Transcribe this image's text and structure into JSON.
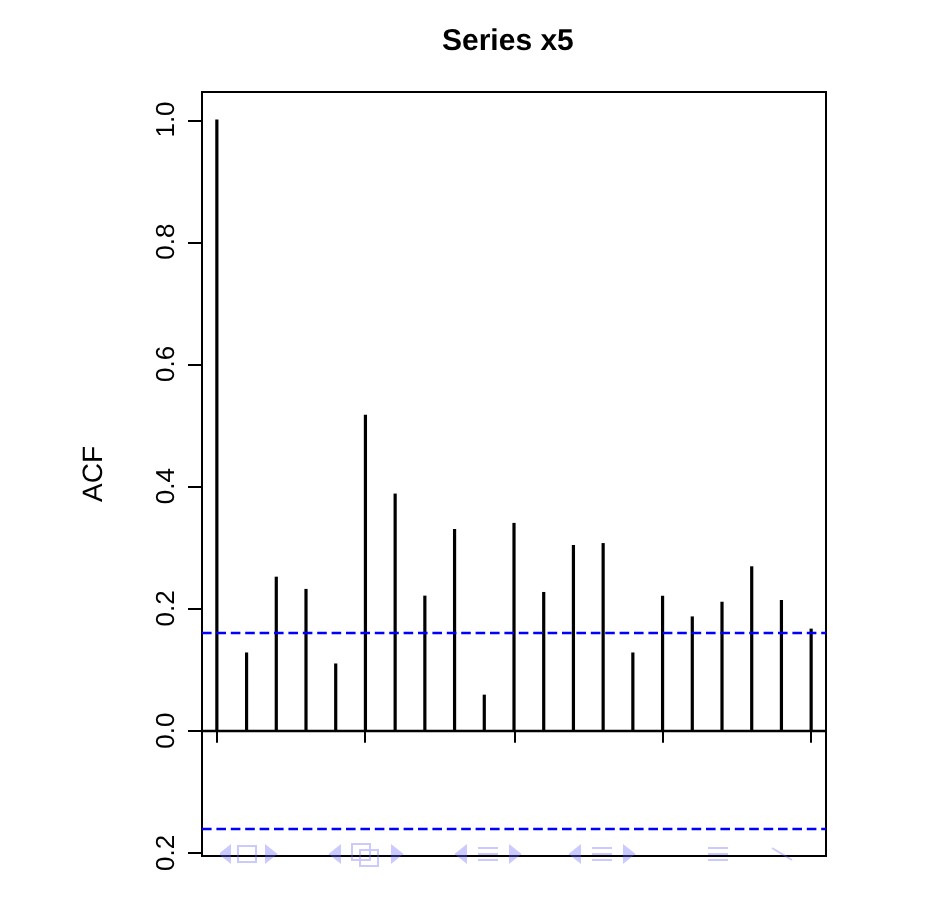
{
  "chart_data": {
    "type": "bar",
    "title": "Series x5",
    "ylabel": "ACF",
    "categories": [
      null,
      null,
      null,
      null,
      null,
      null,
      null,
      null,
      null,
      null,
      null,
      null,
      null,
      null,
      null,
      null,
      null,
      null,
      null,
      null,
      null
    ],
    "series": [
      {
        "color": "#000000",
        "values": [
          1.0,
          0.128,
          0.252,
          0.232,
          0.11,
          0.517,
          0.388,
          0.221,
          0.33,
          0.059,
          0.34,
          0.227,
          0.304,
          0.307,
          0.128,
          0.221,
          0.187,
          0.211,
          0.269,
          0.214,
          0.167
        ]
      }
    ],
    "ylim": [
      -0.205,
      1.045
    ],
    "yticks": [
      {
        "value": -0.2,
        "label": "0.2"
      },
      {
        "value": 0,
        "label": "0.0"
      },
      {
        "value": 0.2,
        "label": "0.2"
      },
      {
        "value": 0.4,
        "label": "0.4"
      },
      {
        "value": 0.6,
        "label": "0.6"
      },
      {
        "value": 0.8,
        "label": "0.8"
      },
      {
        "value": 1.0,
        "label": "1.0"
      }
    ],
    "tick_labels": "y",
    "ref_lines": [
      {
        "axis": "y",
        "value": 0,
        "color": "#000000",
        "line_style": "solid"
      },
      {
        "axis": "y",
        "value": 0.16,
        "color": "#0000ff",
        "line_style": "dashed"
      },
      {
        "axis": "y",
        "value": -0.16,
        "color": "#0000ff",
        "line_style": "dashed"
      }
    ],
    "grid": false
  }
}
